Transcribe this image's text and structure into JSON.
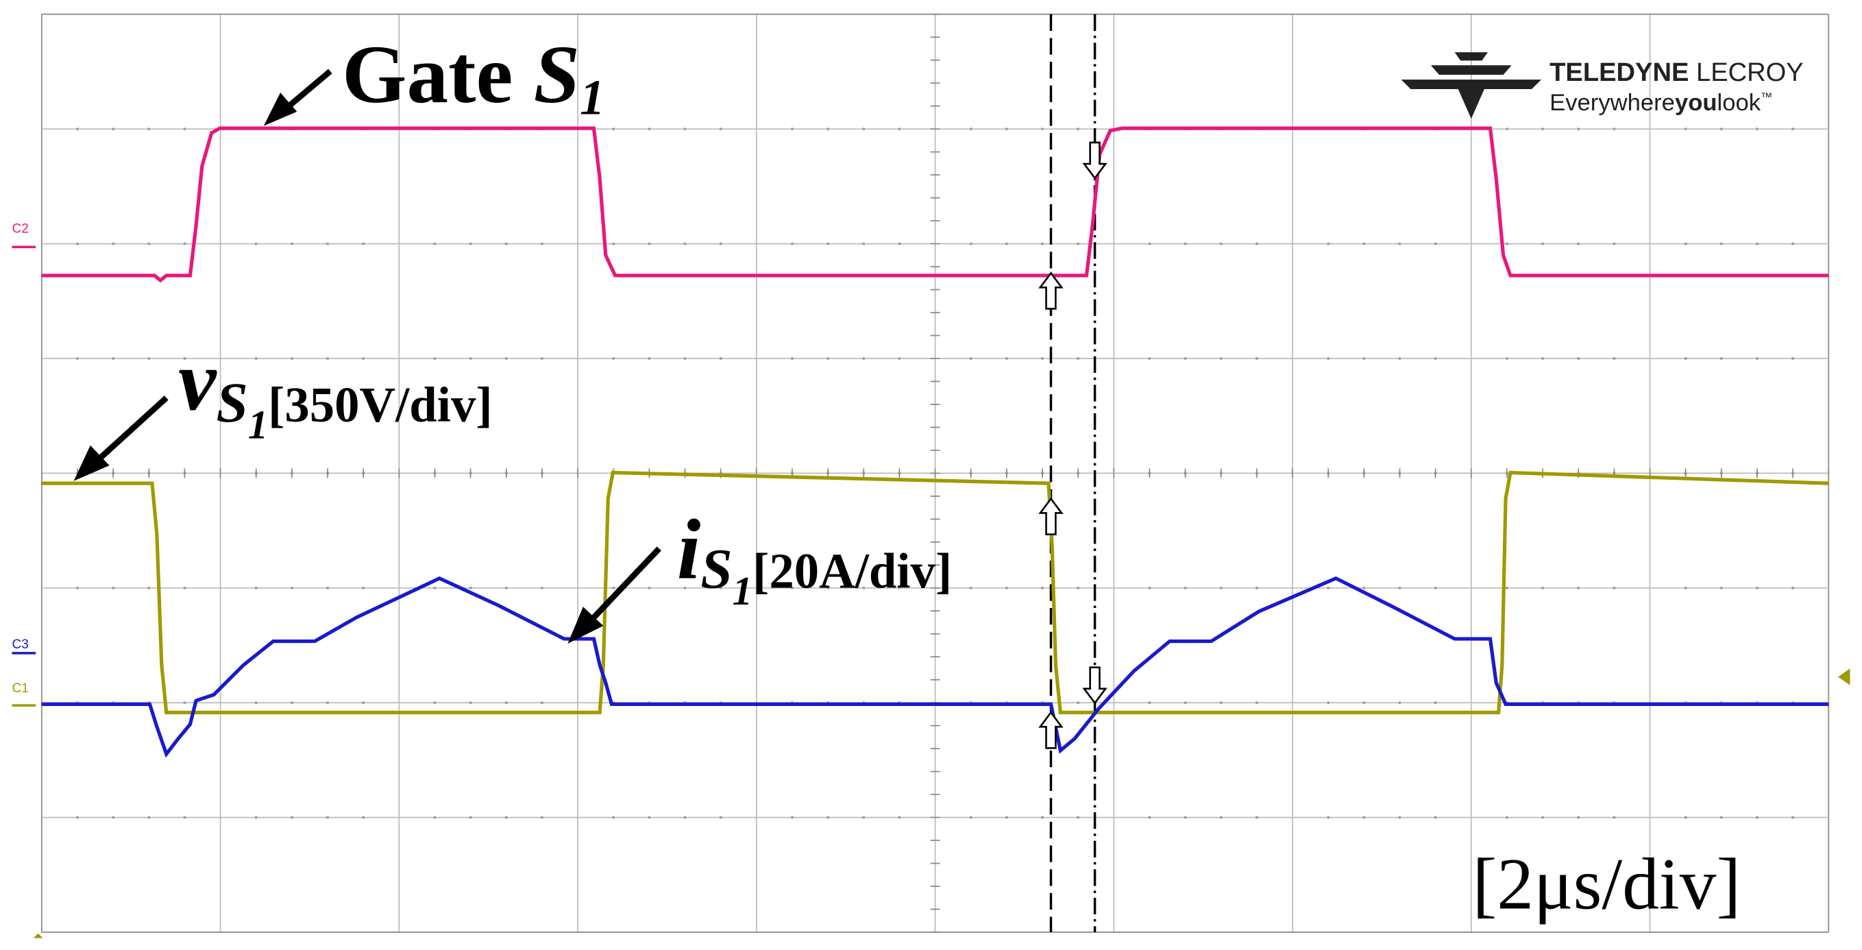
{
  "annotations": {
    "gate": {
      "text": "Gate ",
      "symbol": "S",
      "subscript": "1"
    },
    "voltage": {
      "symbol": "v",
      "sub_symbol": "S",
      "subscript": "1",
      "scale": "[350V/div]"
    },
    "current": {
      "symbol": "i",
      "sub_symbol": "S",
      "subscript": "1",
      "scale": "[20A/div]"
    },
    "timebase": "[2μs/div]"
  },
  "channels": [
    "C2",
    "C3",
    "C1"
  ],
  "logo": {
    "brand_a": "TELEDYNE",
    "brand_b": " LECROY",
    "tagline_a": "Everywhere",
    "tagline_b": "you",
    "tagline_c": "look",
    "tagline_mark": "™"
  }
}
